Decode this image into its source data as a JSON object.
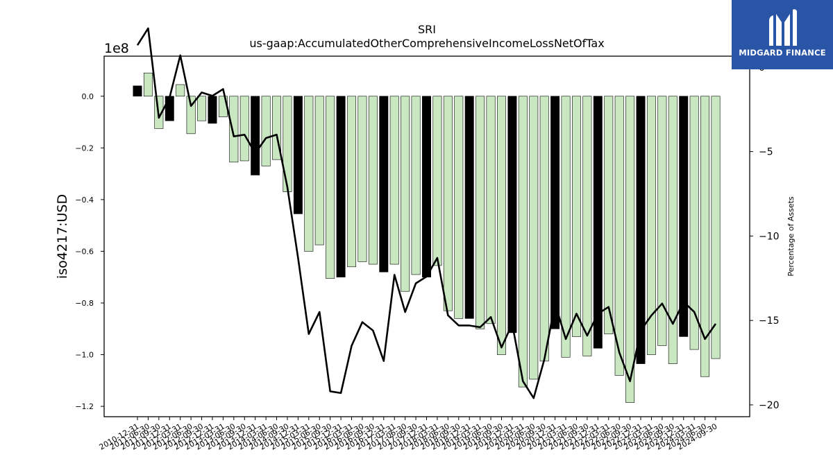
{
  "chart_data": {
    "type": "bar",
    "title": "SRI",
    "subtitle": "us-gaap:AccumulatedOtherComprehensiveIncomeLossNetOfTax",
    "ylabel": "iso4217:USD",
    "y_offset_label": "1e8",
    "y2label": "Percentage of Assets",
    "ylim": [
      -1.24,
      0.155
    ],
    "y2lim": [
      -20.7,
      0.65
    ],
    "yticks": [
      "0.0",
      "−0.2",
      "−0.4",
      "−0.6",
      "−0.8",
      "−1.0",
      "−1.2"
    ],
    "y2ticks": [
      "0",
      "−5",
      "−10",
      "−15",
      "−20"
    ],
    "grid": false,
    "categories": [
      "2010-12-31",
      "2011-06-30",
      "2011-09-30",
      "2011-12-31",
      "2012-03-31",
      "2012-06-30",
      "2012-09-30",
      "2012-12-31",
      "2013-03-31",
      "2013-06-30",
      "2013-09-30",
      "2013-12-31",
      "2014-03-31",
      "2014-06-30",
      "2014-09-30",
      "2014-12-31",
      "2015-03-31",
      "2015-06-30",
      "2015-09-30",
      "2015-12-31",
      "2016-03-31",
      "2016-06-30",
      "2016-09-30",
      "2016-12-31",
      "2017-03-31",
      "2017-06-30",
      "2017-09-30",
      "2017-12-31",
      "2018-03-31",
      "2018-06-30",
      "2018-09-30",
      "2018-12-31",
      "2019-03-31",
      "2019-06-30",
      "2019-09-30",
      "2019-12-31",
      "2020-03-31",
      "2020-06-30",
      "2020-09-30",
      "2020-12-31",
      "2021-03-31",
      "2021-06-30",
      "2021-09-30",
      "2021-12-31",
      "2022-03-31",
      "2022-06-30",
      "2022-09-30",
      "2022-12-31",
      "2023-03-31",
      "2023-06-30",
      "2023-09-30",
      "2023-12-31",
      "2024-03-31",
      "2024-06-30",
      "2024-09-30"
    ],
    "series": [
      {
        "type": "bar",
        "axis": "left",
        "values": [
          0.04,
          0.09,
          -0.125,
          -0.095,
          0.045,
          -0.145,
          -0.095,
          -0.105,
          -0.08,
          -0.255,
          -0.25,
          -0.305,
          -0.27,
          -0.245,
          -0.37,
          -0.455,
          -0.6,
          -0.575,
          -0.705,
          -0.7,
          -0.66,
          -0.64,
          -0.65,
          -0.68,
          -0.65,
          -0.755,
          -0.69,
          -0.7,
          -0.655,
          -0.83,
          -0.86,
          -0.86,
          -0.9,
          -0.88,
          -1.0,
          -0.915,
          -1.125,
          -1.095,
          -1.025,
          -0.9,
          -1.01,
          -0.93,
          -1.005,
          -0.975,
          -0.92,
          -1.08,
          -1.185,
          -1.035,
          -1.0,
          -0.965,
          -1.035,
          -0.93,
          -0.98,
          -1.085,
          -1.015
        ],
        "highlight": [
          true,
          false,
          false,
          true,
          false,
          false,
          false,
          true,
          false,
          false,
          false,
          true,
          false,
          false,
          false,
          true,
          false,
          false,
          false,
          true,
          false,
          false,
          false,
          true,
          false,
          false,
          false,
          true,
          false,
          false,
          false,
          true,
          false,
          false,
          false,
          true,
          false,
          false,
          false,
          true,
          false,
          false,
          false,
          true,
          false,
          false,
          false,
          true,
          false,
          false,
          false,
          true,
          false,
          false,
          false
        ]
      },
      {
        "type": "line",
        "axis": "right",
        "values": [
          1.3,
          2.3,
          -3.0,
          -1.8,
          0.7,
          -2.3,
          -1.5,
          -1.7,
          -1.3,
          -4.1,
          -4.0,
          -5.1,
          -4.2,
          -4.0,
          -7.1,
          -11.3,
          -15.8,
          -14.5,
          -19.2,
          -19.3,
          -16.5,
          -15.1,
          -15.6,
          -17.4,
          -12.3,
          -14.5,
          -12.8,
          -12.4,
          -11.3,
          -14.7,
          -15.3,
          -15.3,
          -15.4,
          -14.8,
          -16.6,
          -15.2,
          -18.6,
          -19.6,
          -17.3,
          -14.0,
          -16.1,
          -14.6,
          -15.9,
          -14.6,
          -14.2,
          -16.9,
          -18.6,
          -15.6,
          -14.7,
          -14.0,
          -15.2,
          -13.9,
          -14.5,
          -16.1,
          -15.2
        ]
      }
    ],
    "colors": {
      "bar": "#c9e8c2",
      "bar_highlight": "#000000",
      "line": "#000000"
    },
    "watermark": "MIDGARD FINANCE"
  }
}
